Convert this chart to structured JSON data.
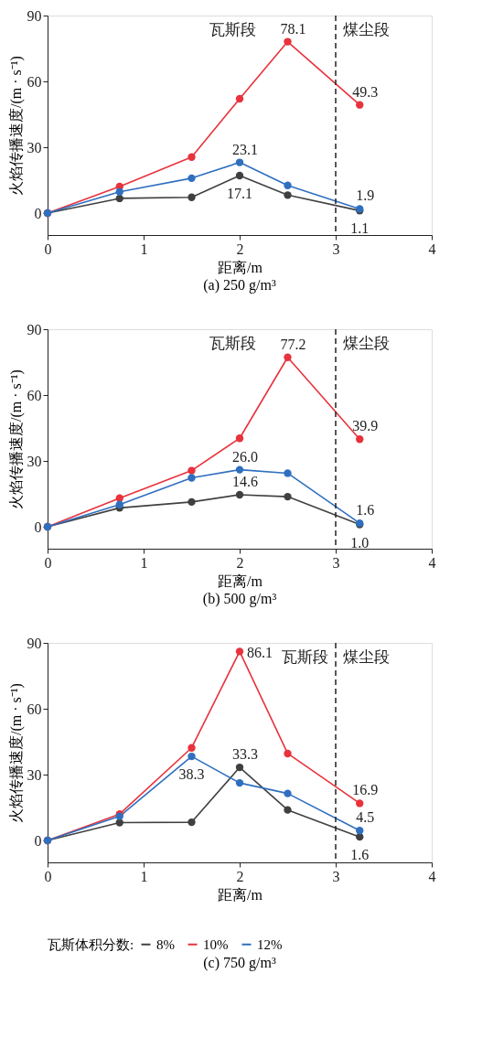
{
  "chart_data": [
    {
      "type": "line",
      "title": "(a) 250 g/m³",
      "xlabel": "距离/m",
      "ylabel": "火焰传播速度/(m · s⁻¹)",
      "x": [
        0,
        0.75,
        1.5,
        2,
        2.5,
        3.25
      ],
      "xlim": [
        0,
        4
      ],
      "xticks": [
        0,
        1,
        2,
        3,
        4
      ],
      "ylim": [
        -10,
        90
      ],
      "yticks": [
        0,
        30,
        60,
        90
      ],
      "grid": false,
      "marker": "circle",
      "series": [
        {
          "color": "#404040",
          "values": [
            0,
            6.7,
            7.2,
            17.1,
            8.2,
            1.1
          ],
          "value_labels": [
            null,
            null,
            null,
            "17.1",
            null,
            "1.1"
          ]
        },
        {
          "color": "#e8323c",
          "values": [
            0,
            12.1,
            25.5,
            52.1,
            78.1,
            49.3
          ],
          "value_labels": [
            null,
            null,
            null,
            null,
            "78.1",
            "49.3"
          ]
        },
        {
          "color": "#2f6fc0",
          "values": [
            0,
            9.7,
            15.9,
            23.1,
            12.6,
            1.9
          ],
          "value_labels": [
            null,
            null,
            null,
            "23.1",
            null,
            "1.9"
          ]
        }
      ],
      "ref_lines": [
        {
          "axis": "x",
          "value": 3,
          "line_style": "dashed"
        }
      ],
      "annotations": [
        "瓦斯段",
        "煤尘段"
      ]
    },
    {
      "type": "line",
      "title": "(b) 500 g/m³",
      "xlabel": "距离/m",
      "ylabel": "火焰传播速度/(m · s⁻¹)",
      "x": [
        0,
        0.75,
        1.5,
        2,
        2.5,
        3.25
      ],
      "xlim": [
        0,
        4
      ],
      "xticks": [
        0,
        1,
        2,
        3,
        4
      ],
      "ylim": [
        -10,
        90
      ],
      "yticks": [
        0,
        30,
        60,
        90
      ],
      "grid": false,
      "marker": "circle",
      "series": [
        {
          "color": "#404040",
          "values": [
            0,
            8.6,
            11.3,
            14.6,
            13.7,
            1.0
          ],
          "value_labels": [
            null,
            null,
            null,
            "14.6",
            null,
            "1.0"
          ]
        },
        {
          "color": "#e8323c",
          "values": [
            0,
            13.0,
            25.6,
            40.3,
            77.2,
            39.9
          ],
          "value_labels": [
            null,
            null,
            null,
            null,
            "77.2",
            "39.9"
          ]
        },
        {
          "color": "#2f6fc0",
          "values": [
            0,
            10.1,
            22.3,
            26.0,
            24.4,
            1.6
          ],
          "value_labels": [
            null,
            null,
            null,
            "26.0",
            null,
            "1.6"
          ]
        }
      ],
      "ref_lines": [
        {
          "axis": "x",
          "value": 3,
          "line_style": "dashed"
        }
      ],
      "annotations": [
        "瓦斯段",
        "煤尘段"
      ]
    },
    {
      "type": "line",
      "title": "(c) 750 g/m³",
      "xlabel": "距离/m",
      "ylabel": "火焰传播速度/(m · s⁻¹)",
      "x": [
        0,
        0.75,
        1.5,
        2,
        2.5,
        3.25
      ],
      "xlim": [
        0,
        4
      ],
      "xticks": [
        0,
        1,
        2,
        3,
        4
      ],
      "ylim": [
        -10,
        90
      ],
      "yticks": [
        0,
        30,
        60,
        90
      ],
      "grid": false,
      "marker": "circle",
      "legend": "bottom",
      "legend_title": "瓦斯体积分数:",
      "series": [
        {
          "name": "8%",
          "color": "#404040",
          "values": [
            0,
            8.1,
            8.3,
            33.3,
            13.9,
            1.6
          ],
          "value_labels": [
            null,
            null,
            null,
            "33.3",
            null,
            "1.6"
          ]
        },
        {
          "name": "10%",
          "color": "#e8323c",
          "values": [
            0,
            12.0,
            42.2,
            86.1,
            39.6,
            16.9
          ],
          "value_labels": [
            null,
            null,
            null,
            "86.1",
            null,
            "16.9"
          ]
        },
        {
          "name": "12%",
          "color": "#2f6fc0",
          "values": [
            0,
            11.0,
            38.3,
            26.2,
            21.4,
            4.5
          ],
          "value_labels": [
            null,
            null,
            "38.3",
            null,
            null,
            "4.5"
          ]
        }
      ],
      "ref_lines": [
        {
          "axis": "x",
          "value": 3,
          "line_style": "dashed"
        }
      ],
      "annotations": [
        "瓦斯段",
        "煤尘段"
      ]
    }
  ]
}
